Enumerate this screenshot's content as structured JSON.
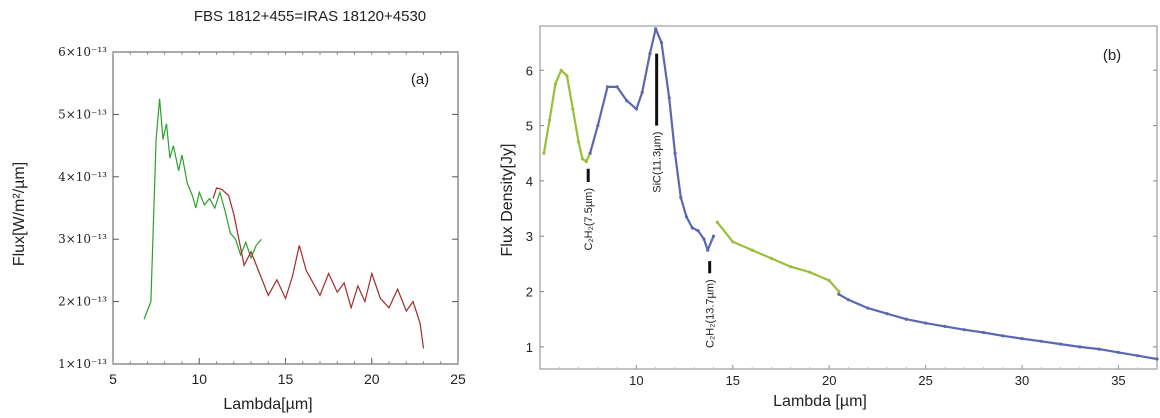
{
  "figure_title": "FBS 1812+455=IRAS 18120+4530",
  "chart_data": [
    {
      "type": "line",
      "panel_label": "(a)",
      "xlabel": "Lambda[µm]",
      "ylabel": "Flux[W/m²/µm]",
      "xlim": [
        5,
        25
      ],
      "ylim": [
        1e-13,
        6e-13
      ],
      "xticks": [
        "5",
        "10",
        "15",
        "20",
        "25"
      ],
      "yticks": [
        "1×10⁻¹³",
        "2×10⁻¹³",
        "3×10⁻¹³",
        "4×10⁻¹³",
        "5×10⁻¹³",
        "6×10⁻¹³"
      ],
      "grid": false,
      "series": [
        {
          "color": "#2ca02c",
          "x": [
            6.8,
            7.2,
            7.5,
            7.7,
            7.9,
            8.1,
            8.3,
            8.5,
            8.8,
            9.0,
            9.3,
            9.6,
            9.8,
            10.0,
            10.3,
            10.6,
            10.9,
            11.2,
            11.5,
            11.8,
            12.1,
            12.4,
            12.7,
            13.0,
            13.3,
            13.6
          ],
          "y": [
            1.72e-13,
            2e-13,
            4.6e-13,
            5.25e-13,
            4.6e-13,
            4.85e-13,
            4.3e-13,
            4.5e-13,
            4.1e-13,
            4.35e-13,
            3.9e-13,
            3.7e-13,
            3.5e-13,
            3.75e-13,
            3.55e-13,
            3.65e-13,
            3.5e-13,
            3.75e-13,
            3.45e-13,
            3.1e-13,
            3e-13,
            2.75e-13,
            2.95e-13,
            2.7e-13,
            2.9e-13,
            3e-13
          ]
        },
        {
          "color": "#a52a2a",
          "x": [
            10.8,
            11.0,
            11.3,
            11.7,
            12.0,
            12.3,
            12.6,
            13.0,
            13.5,
            14.0,
            14.5,
            15.0,
            15.4,
            15.8,
            16.2,
            16.6,
            17.0,
            17.5,
            18.0,
            18.4,
            18.8,
            19.2,
            19.6,
            20.0,
            20.5,
            21.0,
            21.5,
            22.0,
            22.4,
            22.8,
            23.0
          ],
          "y": [
            3.65e-13,
            3.82e-13,
            3.8e-13,
            3.7e-13,
            3.4e-13,
            3e-13,
            2.58e-13,
            2.8e-13,
            2.45e-13,
            2.1e-13,
            2.35e-13,
            2.05e-13,
            2.4e-13,
            2.9e-13,
            2.5e-13,
            2.3e-13,
            2.1e-13,
            2.45e-13,
            2.15e-13,
            2.3e-13,
            1.9e-13,
            2.25e-13,
            2e-13,
            2.45e-13,
            2.05e-13,
            1.9e-13,
            2.2e-13,
            1.85e-13,
            2e-13,
            1.65e-13,
            1.25e-13
          ]
        }
      ]
    },
    {
      "type": "line",
      "panel_label": "(b)",
      "xlabel": "Lambda [µm]",
      "ylabel": "Flux Density[Jy]",
      "xlim": [
        5,
        37
      ],
      "ylim": [
        0.6,
        6.8
      ],
      "xticks": [
        "10",
        "15",
        "20",
        "25",
        "30",
        "35"
      ],
      "yticks": [
        "1",
        "2",
        "3",
        "4",
        "5",
        "6"
      ],
      "grid": false,
      "series": [
        {
          "color": "#9abd3a",
          "x": [
            5.2,
            5.5,
            5.8,
            6.1,
            6.4,
            6.7,
            7.0,
            7.2,
            7.4,
            7.6
          ],
          "y": [
            4.5,
            5.1,
            5.75,
            6.0,
            5.9,
            5.3,
            4.7,
            4.4,
            4.35,
            4.5
          ]
        },
        {
          "color": "#5a68b0",
          "x": [
            7.6,
            8.0,
            8.5,
            9.0,
            9.5,
            10.0,
            10.3,
            10.7,
            11.0,
            11.3,
            11.7,
            12.0,
            12.3,
            12.6,
            12.9,
            13.2,
            13.5,
            13.7,
            14.0
          ],
          "y": [
            4.5,
            5.0,
            5.7,
            5.7,
            5.45,
            5.3,
            5.6,
            6.3,
            6.75,
            6.5,
            5.5,
            4.5,
            3.7,
            3.35,
            3.15,
            3.1,
            2.95,
            2.75,
            3.0
          ]
        },
        {
          "color": "#9abd3a",
          "x": [
            14.2,
            15.0,
            16.0,
            17.0,
            18.0,
            19.0,
            20.0,
            20.5
          ],
          "y": [
            3.25,
            2.9,
            2.75,
            2.6,
            2.45,
            2.35,
            2.2,
            2.0
          ]
        },
        {
          "color": "#5a68b0",
          "x": [
            20.5,
            21.0,
            22.0,
            23.0,
            24.0,
            25.0,
            26.0,
            27.0,
            28.0,
            29.0,
            30.0,
            31.0,
            32.0,
            33.0,
            34.0,
            35.0,
            36.0,
            37.0
          ],
          "y": [
            1.95,
            1.85,
            1.7,
            1.6,
            1.5,
            1.43,
            1.37,
            1.31,
            1.26,
            1.2,
            1.15,
            1.1,
            1.05,
            1.0,
            0.96,
            0.9,
            0.84,
            0.78
          ]
        }
      ],
      "annotations": [
        {
          "label": "C₂H₂(7.5µm)",
          "x": 7.5,
          "y_top": 4.22,
          "y_bottom": 3.98
        },
        {
          "label": "SiC(11.3µm)",
          "x": 11.05,
          "y_top": 6.3,
          "y_bottom": 5.0
        },
        {
          "label": "C₂H₂(13.7µm)",
          "x": 13.8,
          "y_top": 2.55,
          "y_bottom": 2.33
        }
      ]
    }
  ]
}
